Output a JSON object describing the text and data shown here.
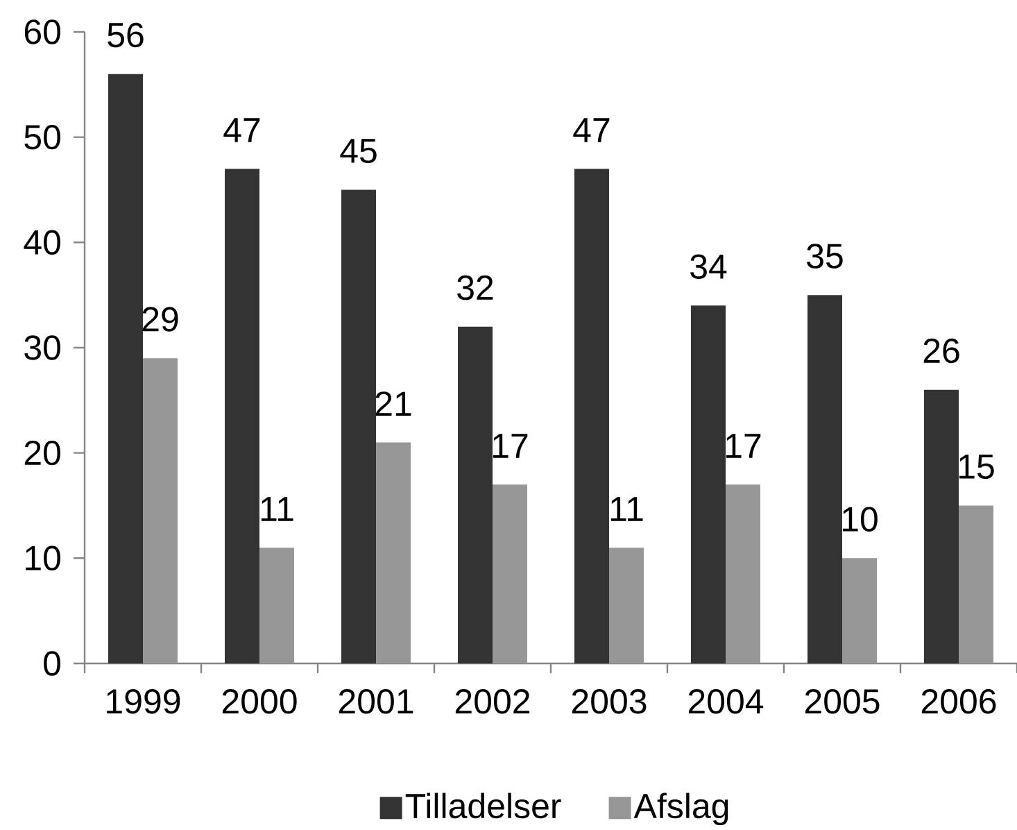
{
  "chart_data": {
    "type": "bar",
    "categories": [
      "1999",
      "2000",
      "2001",
      "2002",
      "2003",
      "2004",
      "2005",
      "2006"
    ],
    "series": [
      {
        "name": "Tilladelser",
        "color": "#333333",
        "values": [
          56,
          47,
          45,
          32,
          47,
          34,
          35,
          26
        ]
      },
      {
        "name": "Afslag",
        "color": "#969696",
        "values": [
          29,
          11,
          21,
          17,
          11,
          17,
          10,
          15
        ]
      }
    ],
    "ylim": [
      0,
      60
    ],
    "yticks": [
      0,
      10,
      20,
      30,
      40,
      50,
      60
    ],
    "data_labels": true,
    "legend": "bottom"
  }
}
